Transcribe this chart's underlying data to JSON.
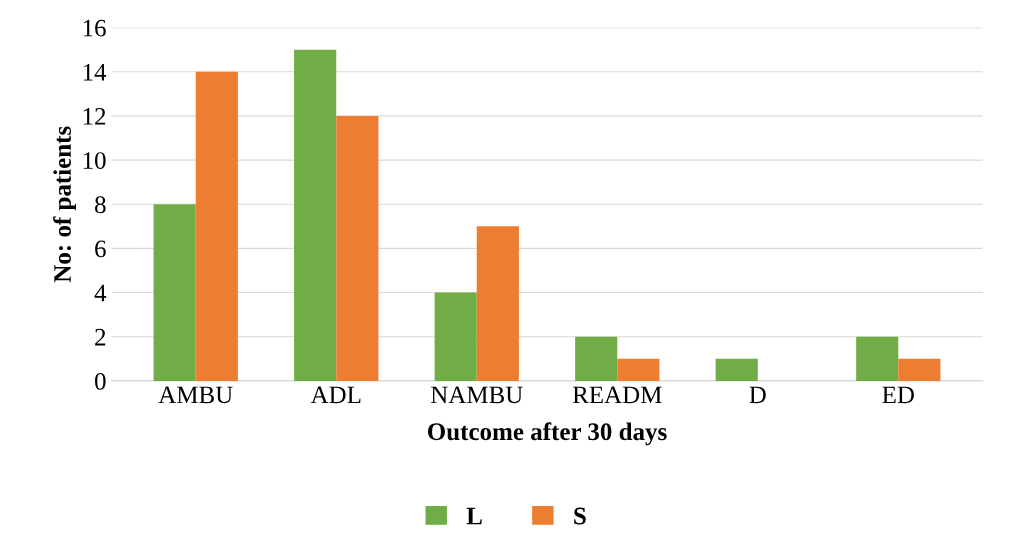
{
  "chart_data": {
    "type": "bar",
    "xlabel": "Outcome after 30 days",
    "ylabel": "No: of patients",
    "categories": [
      "AMBU",
      "ADL",
      "NAMBU",
      "READM",
      "D",
      "ED"
    ],
    "series": [
      {
        "name": "L",
        "color": "#70ad47",
        "values": [
          8,
          15,
          4,
          2,
          1,
          2
        ]
      },
      {
        "name": "S",
        "color": "#ed7d31",
        "values": [
          14,
          12,
          7,
          1,
          0,
          1
        ]
      }
    ],
    "ylim": [
      0,
      16
    ],
    "yticks": [
      0,
      2,
      4,
      6,
      8,
      10,
      12,
      14,
      16
    ],
    "grid": "y",
    "legend": "bottom"
  }
}
